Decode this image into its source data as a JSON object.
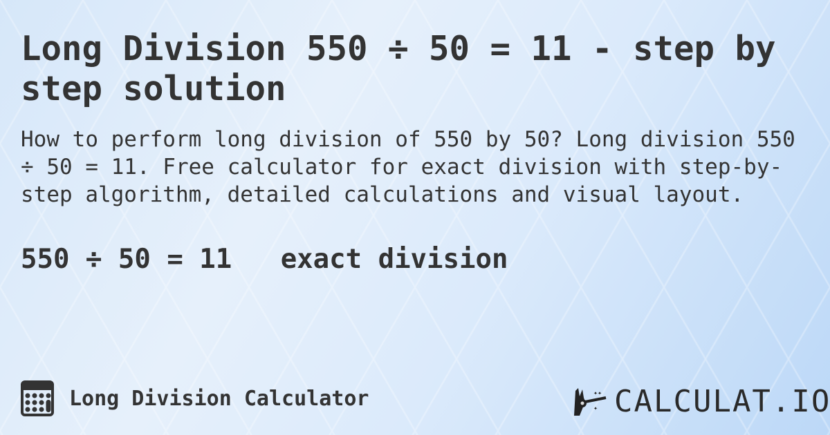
{
  "title": "Long Division 550 ÷ 50 = 11 - step by step solution",
  "description": "How to perform long division of 550 by 50? Long division 550 ÷ 50 = 11. Free calculator for exact division with step-by-step algorithm, detailed calculations and visual layout.",
  "result": {
    "equation": "550 ÷ 50 = 11",
    "note": "exact division"
  },
  "footer": {
    "calculator_name": "Long Division Calculator",
    "calculator_icon": "calculator-icon",
    "brand": "CALCULAT.IO",
    "brand_icon": "magic-hand-icon"
  }
}
